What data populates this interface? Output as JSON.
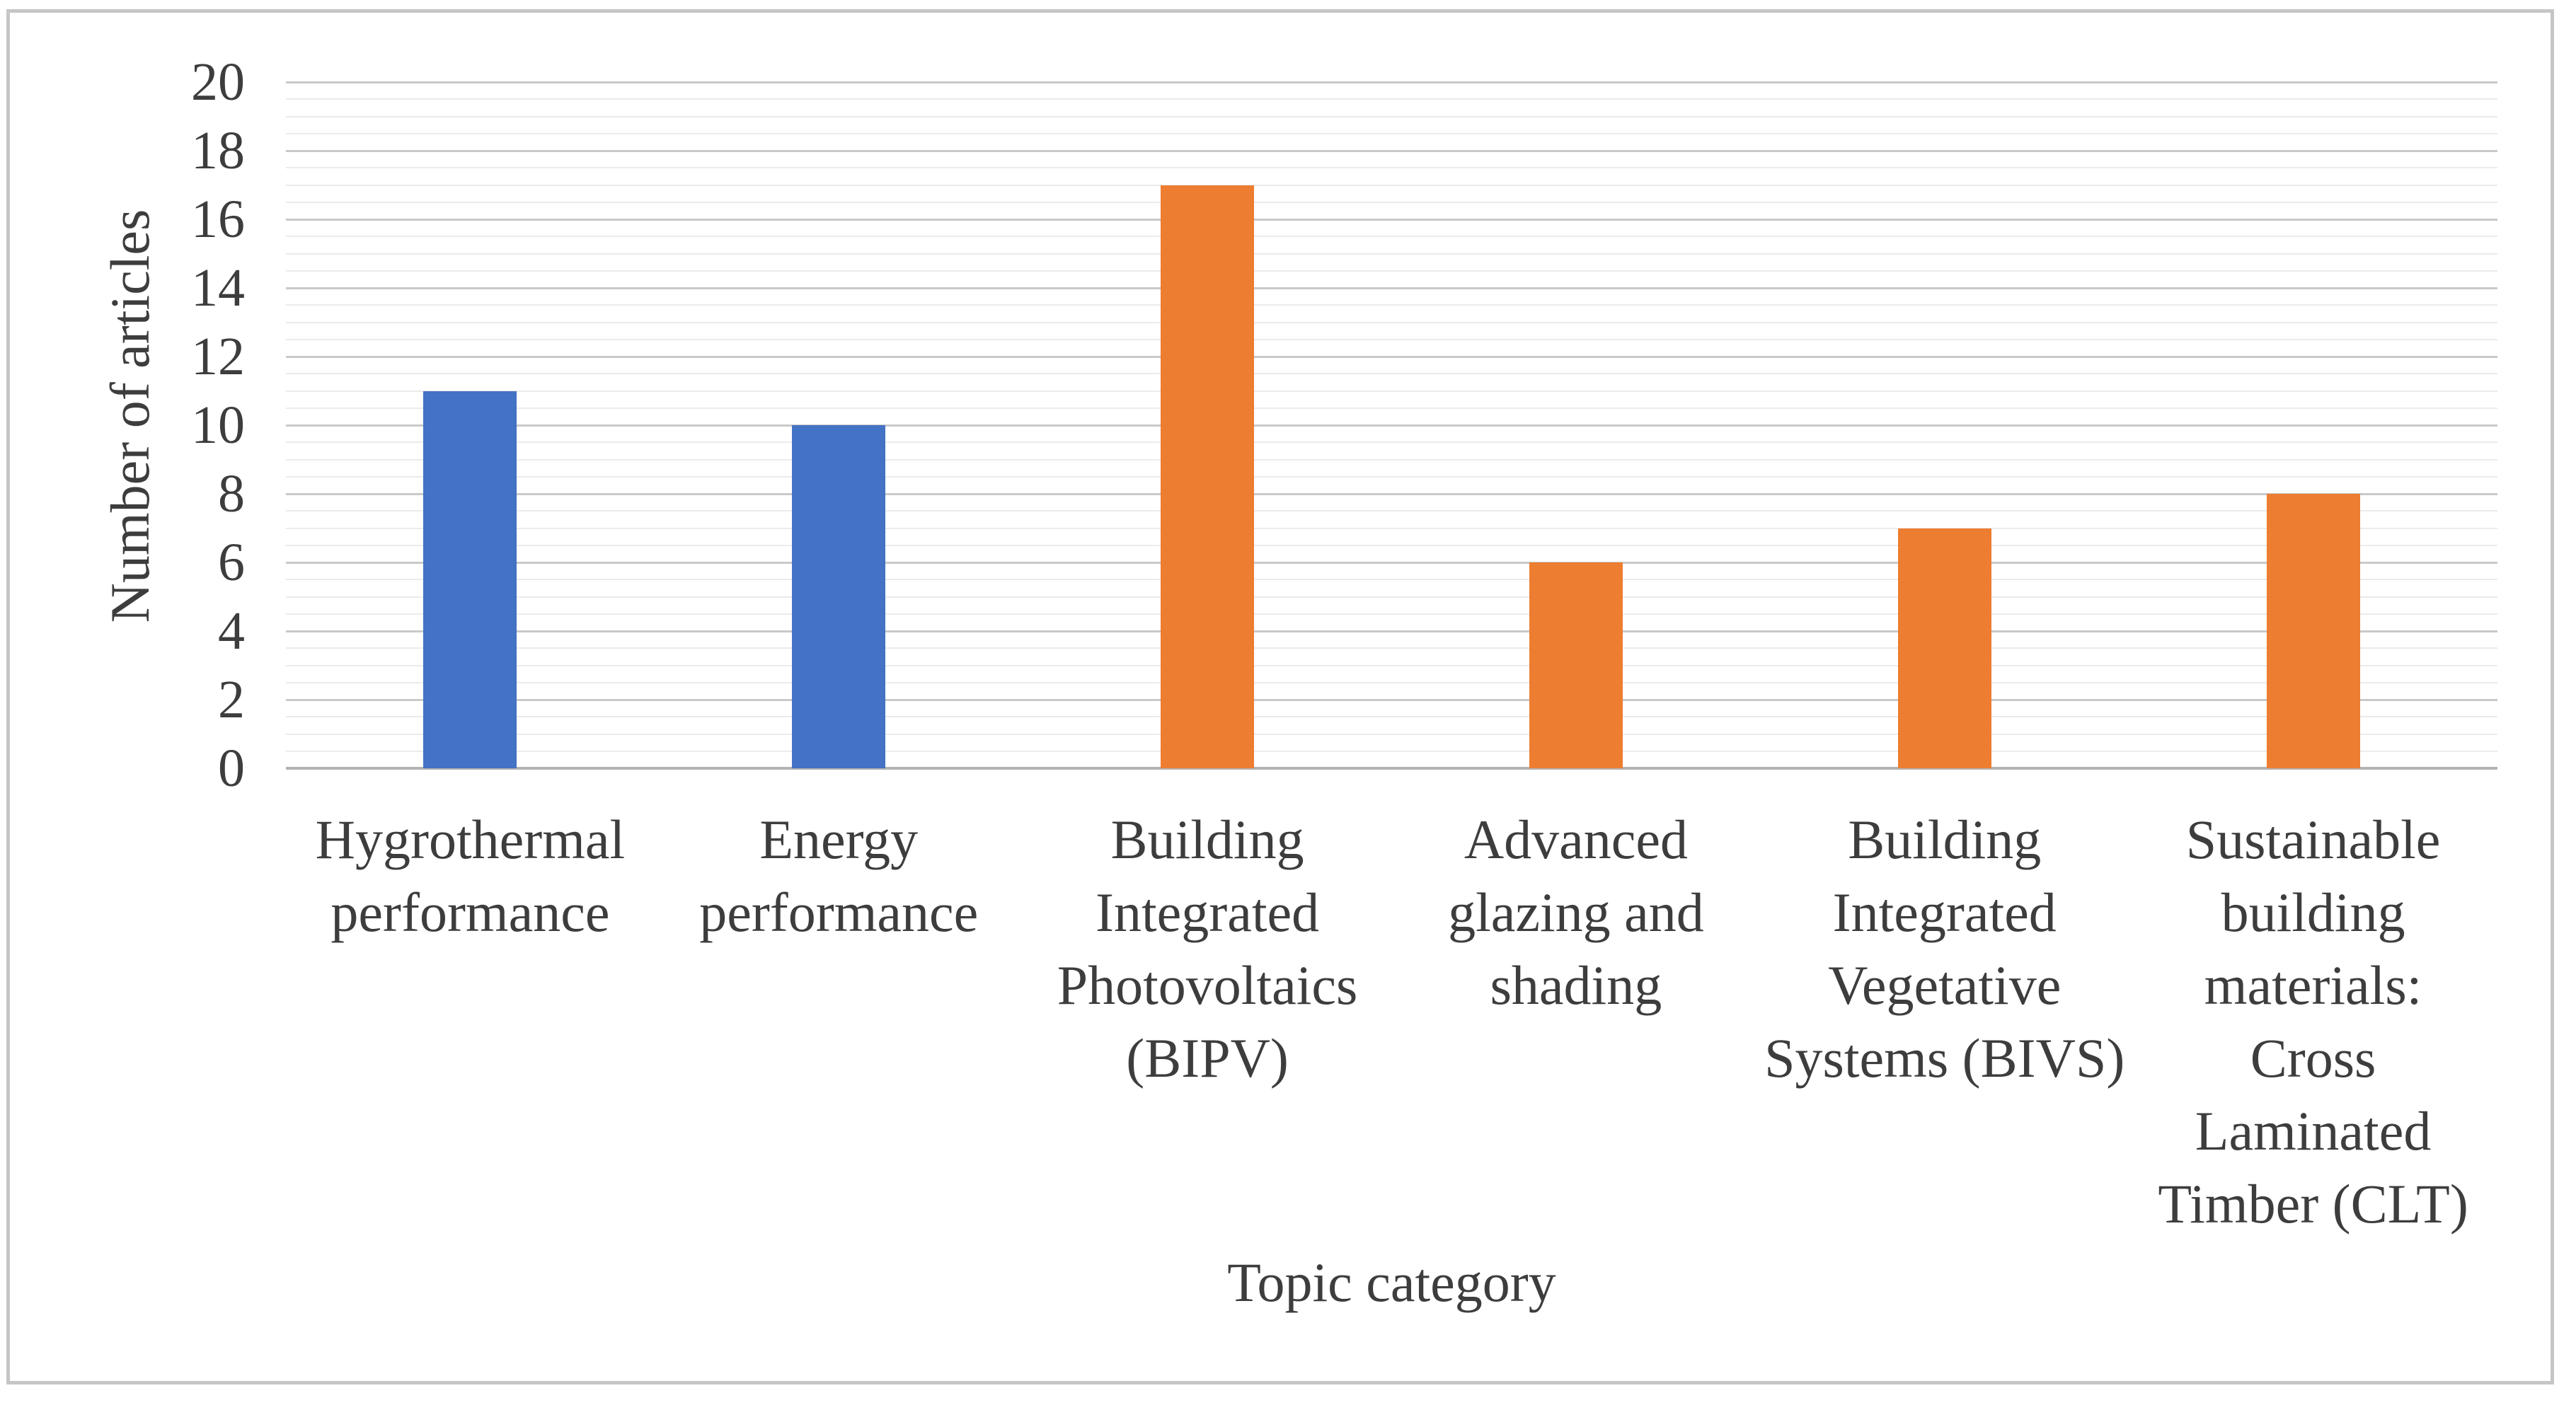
{
  "figure": {
    "background": "#ffffff",
    "border_color": "#c6c6c6"
  },
  "chart_data": {
    "type": "bar",
    "title": "",
    "xlabel": "Topic category",
    "ylabel": "Number of articles",
    "categories": [
      "Hygrothermal performance",
      "Energy performance",
      "Building Integrated Photovoltaics (BIPV)",
      "Advanced glazing and shading",
      "Building Integrated Vegetative Systems (BIVS)",
      "Sustainable building materials: Cross Laminated Timber (CLT)"
    ],
    "category_lines": [
      [
        "Hygrothermal",
        "performance"
      ],
      [
        "Energy",
        "performance"
      ],
      [
        "Building",
        "Integrated",
        "Photovoltaics",
        "(BIPV)"
      ],
      [
        "Advanced",
        "glazing and",
        "shading"
      ],
      [
        "Building",
        "Integrated",
        "Vegetative",
        "Systems (BIVS)"
      ],
      [
        "Sustainable",
        "building",
        "materials:",
        "Cross",
        "Laminated",
        "Timber (CLT)"
      ]
    ],
    "values": [
      11,
      10,
      17,
      6,
      7,
      8
    ],
    "bar_colors": [
      "#4472C4",
      "#4472C4",
      "#ED7D31",
      "#ED7D31",
      "#ED7D31",
      "#ED7D31"
    ],
    "ylim": [
      0,
      20
    ],
    "y_major_step": 2,
    "y_minor_step": 0.5,
    "y_tick_labels": [
      "0",
      "2",
      "4",
      "6",
      "8",
      "10",
      "12",
      "14",
      "16",
      "18",
      "20"
    ],
    "grid": true,
    "legend_position": "none",
    "colors": {
      "major_gridline": "#c9c9c9",
      "minor_gridline": "#ebebeb",
      "axis_line": "#b3b3b3",
      "text": "#3d3d3d"
    }
  }
}
